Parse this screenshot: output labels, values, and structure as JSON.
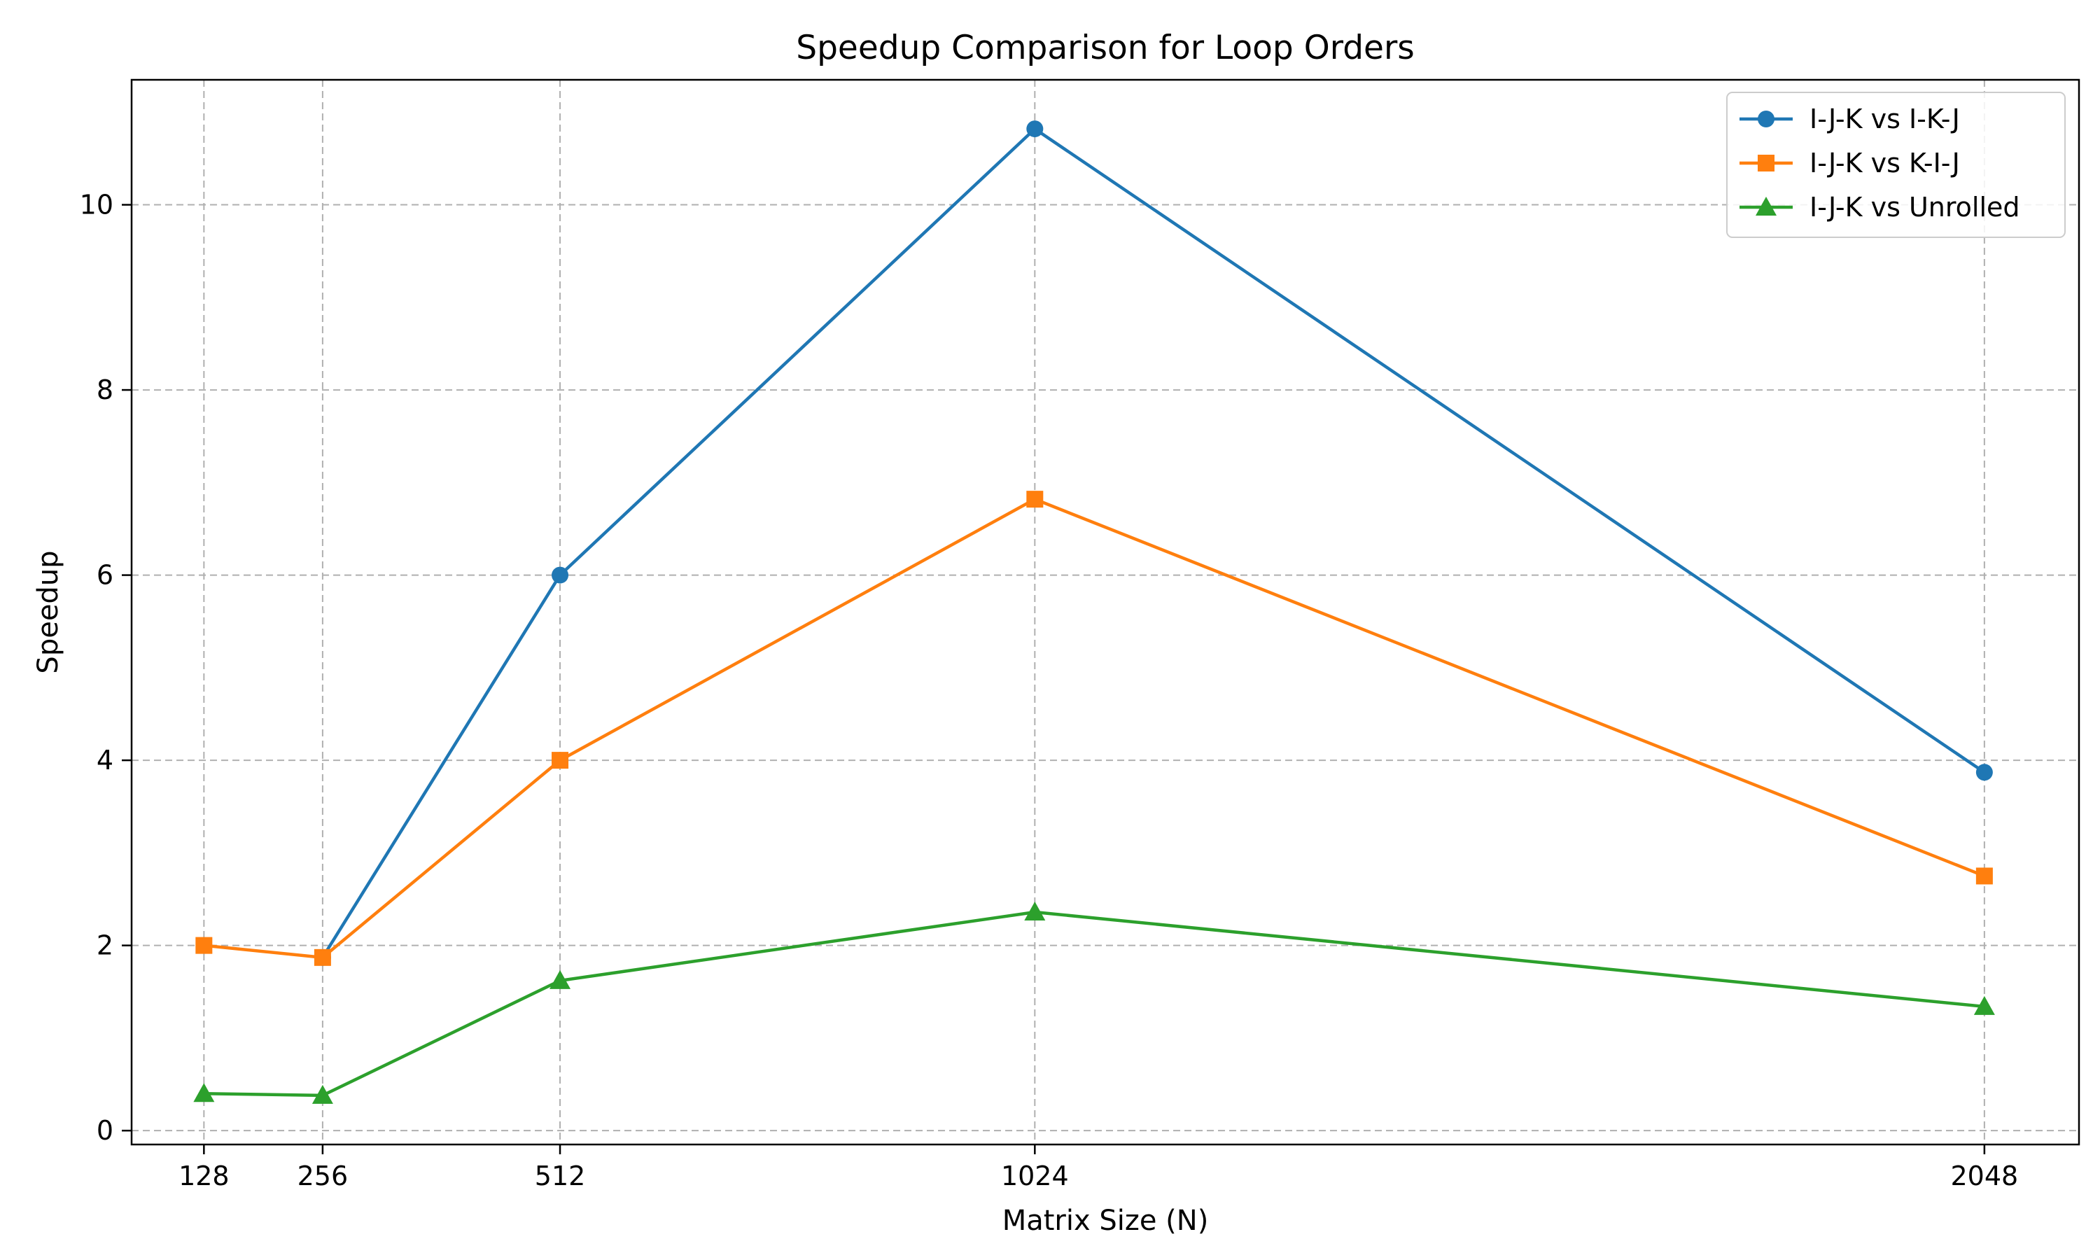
{
  "chart_data": {
    "type": "line",
    "title": "Speedup Comparison for Loop Orders",
    "xlabel": "Matrix Size (N)",
    "ylabel": "Speedup",
    "x": [
      128,
      256,
      512,
      1024,
      2048
    ],
    "x_tick_labels": [
      "128",
      "256",
      "512",
      "1024",
      "2048"
    ],
    "xlim": [
      50,
      2150
    ],
    "ylim": [
      -0.15,
      11.35
    ],
    "y_ticks": [
      0,
      2,
      4,
      6,
      8,
      10
    ],
    "y_tick_labels": [
      "0",
      "2",
      "4",
      "6",
      "8",
      "10"
    ],
    "grid": true,
    "legend_position": "top-right",
    "series": [
      {
        "name": "I-J-K vs I-K-J",
        "marker": "circle",
        "color": "#1f77b4",
        "values": [
          null,
          1.87,
          6.0,
          10.82,
          3.87
        ]
      },
      {
        "name": "I-J-K vs K-I-J",
        "marker": "square",
        "color": "#ff7f0e",
        "values": [
          2.0,
          1.87,
          4.0,
          6.82,
          2.75
        ]
      },
      {
        "name": "I-J-K vs Unrolled",
        "marker": "triangle",
        "color": "#2ca02c",
        "values": [
          0.4,
          0.38,
          1.62,
          2.36,
          1.34
        ]
      }
    ]
  }
}
